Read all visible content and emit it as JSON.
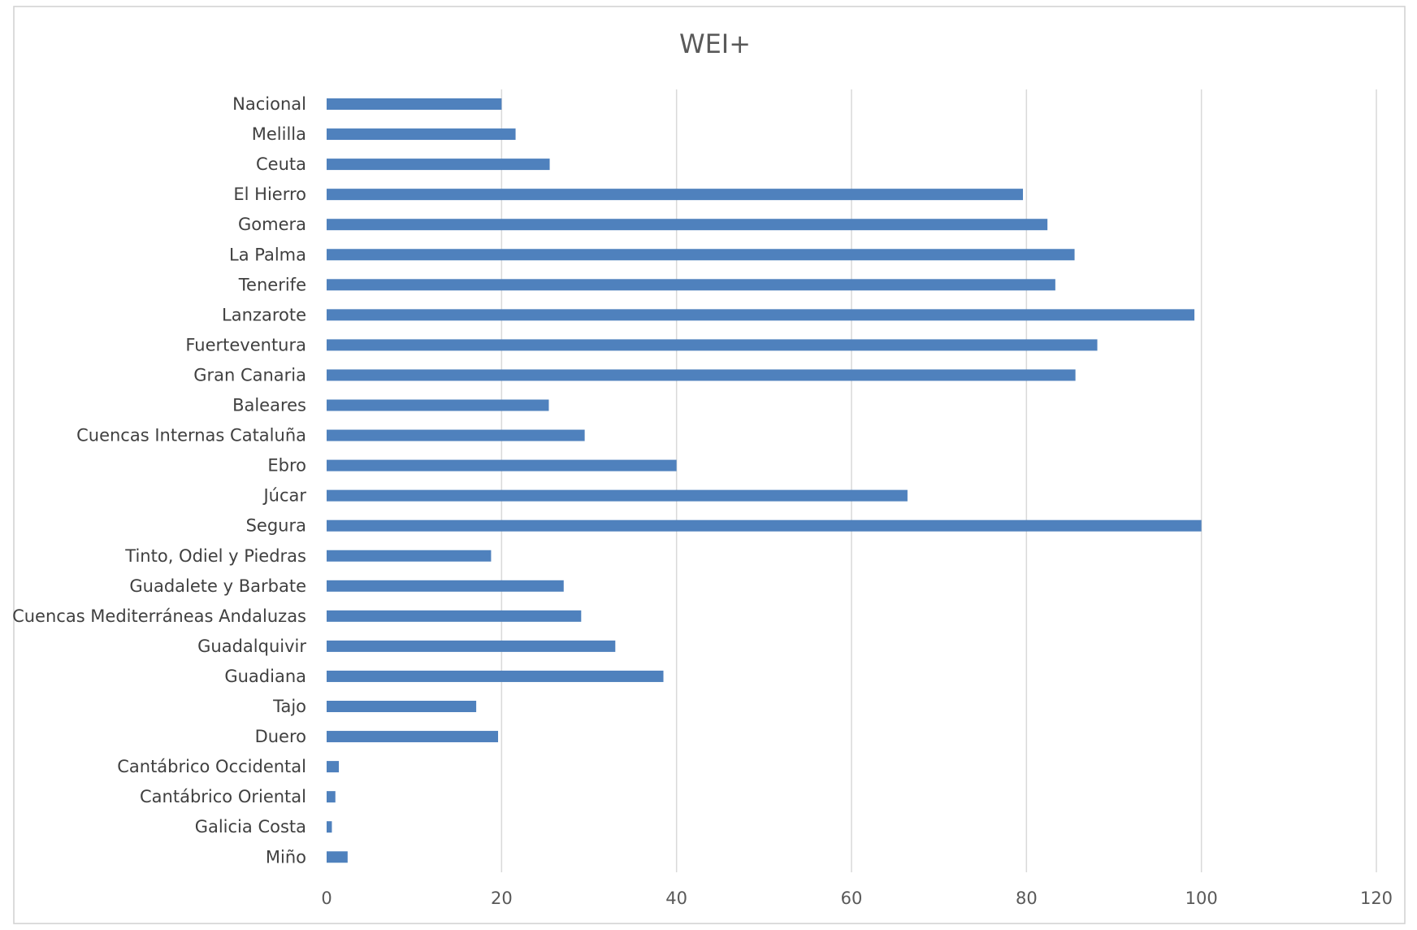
{
  "colors": {
    "bar": "#4f81bd",
    "grid": "#d9d9d9",
    "frame": "#000000"
  },
  "chart_data": {
    "type": "bar",
    "orientation": "horizontal",
    "title": "WEI+",
    "xlabel": "",
    "ylabel": "",
    "xlim": [
      0,
      120
    ],
    "ticks": [
      0,
      20,
      40,
      60,
      80,
      100,
      120
    ],
    "tick_labels": [
      "0",
      "20",
      "40",
      "60",
      "80",
      "100",
      "120"
    ],
    "grid": true,
    "legend": "none",
    "categories": [
      "Nacional",
      "Melilla",
      "Ceuta",
      "El Hierro",
      "Gomera",
      "La Palma",
      "Tenerife",
      "Lanzarote",
      "Fuerteventura",
      "Gran Canaria",
      "Baleares",
      "Cuencas Internas Cataluña",
      "Ebro",
      "Júcar",
      "Segura",
      "Tinto, Odiel y Piedras",
      "Guadalete y Barbate",
      "Cuencas Mediterráneas Andaluzas",
      "Guadalquivir",
      "Guadiana",
      "Tajo",
      "Duero",
      "Cantábrico Occidental",
      "Cantábrico Oriental",
      "Galicia Costa",
      "Miño"
    ],
    "values": [
      20,
      21.6,
      25.5,
      79.6,
      82.4,
      85.5,
      83.3,
      99.2,
      88.1,
      85.6,
      25.4,
      29.5,
      40,
      66.4,
      100,
      18.8,
      27.1,
      29.1,
      33,
      38.5,
      17.1,
      19.6,
      1.4,
      1,
      0.6,
      2.4
    ]
  }
}
